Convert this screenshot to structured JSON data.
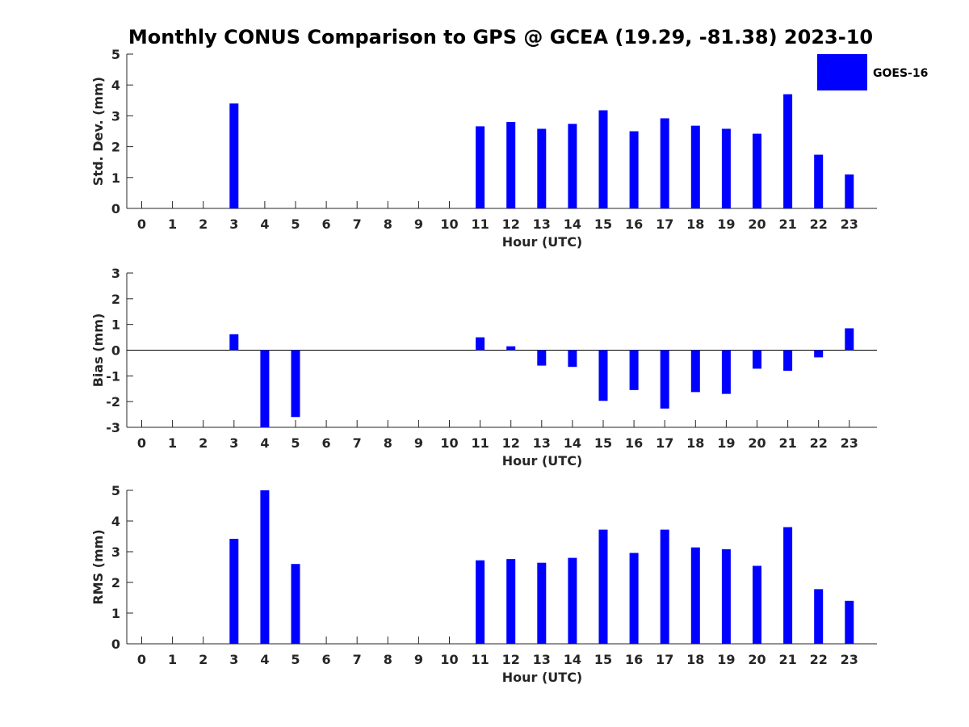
{
  "title": "Monthly CONUS Comparison to GPS @ GCEA (19.29, -81.38) 2023-10",
  "legend": {
    "label": "GOES-16",
    "color": "#0000ff"
  },
  "chart_data": [
    {
      "type": "bar",
      "name": "std-dev",
      "categories": [
        "0",
        "1",
        "2",
        "3",
        "4",
        "5",
        "6",
        "7",
        "8",
        "9",
        "10",
        "11",
        "12",
        "13",
        "14",
        "15",
        "16",
        "17",
        "18",
        "19",
        "20",
        "21",
        "22",
        "23"
      ],
      "series": [
        {
          "name": "GOES-16",
          "values": [
            null,
            null,
            null,
            3.4,
            null,
            null,
            null,
            null,
            null,
            null,
            null,
            2.66,
            2.8,
            2.58,
            2.74,
            3.18,
            2.5,
            2.92,
            2.68,
            2.58,
            2.42,
            3.7,
            1.74,
            1.1
          ]
        }
      ],
      "xlabel": "Hour (UTC)",
      "ylabel": "Std. Dev. (mm)",
      "ylim": [
        0,
        5
      ],
      "yticks": [
        "0",
        "1",
        "2",
        "3",
        "4",
        "5"
      ],
      "zero_line": false
    },
    {
      "type": "bar",
      "name": "bias",
      "categories": [
        "0",
        "1",
        "2",
        "3",
        "4",
        "5",
        "6",
        "7",
        "8",
        "9",
        "10",
        "11",
        "12",
        "13",
        "14",
        "15",
        "16",
        "17",
        "18",
        "19",
        "20",
        "21",
        "22",
        "23"
      ],
      "series": [
        {
          "name": "GOES-16",
          "values": [
            null,
            null,
            null,
            0.62,
            -3.0,
            -2.6,
            null,
            null,
            null,
            null,
            null,
            0.5,
            0.15,
            -0.6,
            -0.65,
            -1.97,
            -1.55,
            -2.27,
            -1.63,
            -1.7,
            -0.72,
            -0.8,
            -0.28,
            0.85
          ]
        }
      ],
      "xlabel": "Hour (UTC)",
      "ylabel": "Bias (mm)",
      "ylim": [
        -3,
        3
      ],
      "yticks": [
        "-3",
        "-2",
        "-1",
        "0",
        "1",
        "2",
        "3"
      ],
      "zero_line": true
    },
    {
      "type": "bar",
      "name": "rms",
      "categories": [
        "0",
        "1",
        "2",
        "3",
        "4",
        "5",
        "6",
        "7",
        "8",
        "9",
        "10",
        "11",
        "12",
        "13",
        "14",
        "15",
        "16",
        "17",
        "18",
        "19",
        "20",
        "21",
        "22",
        "23"
      ],
      "series": [
        {
          "name": "GOES-16",
          "values": [
            null,
            null,
            null,
            3.42,
            5.0,
            2.6,
            null,
            null,
            null,
            null,
            null,
            2.72,
            2.76,
            2.64,
            2.8,
            3.72,
            2.96,
            3.72,
            3.14,
            3.08,
            2.54,
            3.8,
            1.78,
            1.4
          ]
        }
      ],
      "xlabel": "Hour (UTC)",
      "ylabel": "RMS (mm)",
      "ylim": [
        0,
        5
      ],
      "yticks": [
        "0",
        "1",
        "2",
        "3",
        "4",
        "5"
      ],
      "zero_line": false
    }
  ]
}
